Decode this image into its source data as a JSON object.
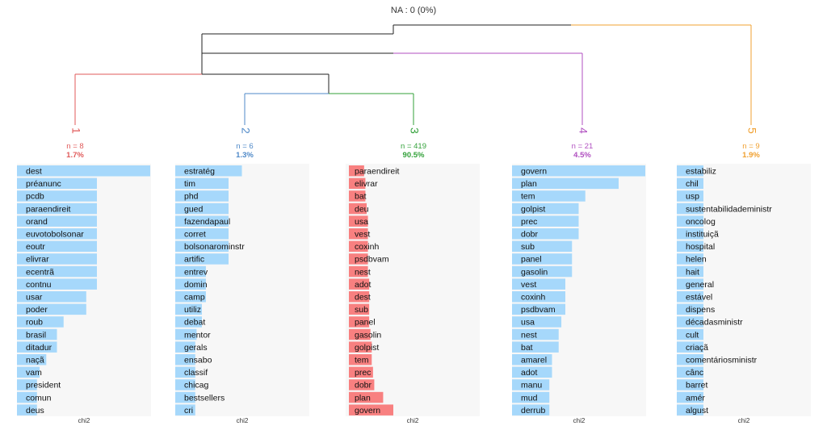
{
  "na_label": "NA : 0 (0%)",
  "axis_label": "chi2",
  "colors": {
    "class1": "#e05a5a",
    "class2": "#4f89c8",
    "class3": "#33a13a",
    "class4": "#b04fc0",
    "class5": "#f0a030",
    "bar_positive": "#a6d8fb",
    "bar_negative": "#f88080",
    "panel_bg": "#f7f7f7",
    "tree_black": "#222222"
  },
  "chart_data": [
    {
      "type": "bar",
      "orientation": "horizontal",
      "class_label": "1",
      "n_label": "n = 8",
      "pct_label": "1.7%",
      "n": 8,
      "percent": 1.7,
      "color": "#e05a5a",
      "xlabel": "chi2",
      "xlim": [
        0,
        100
      ],
      "categories": [
        "dest",
        "préanunc",
        "pcdb",
        "paraendireit",
        "orand",
        "euvotobolsonar",
        "eoutr",
        "elivrar",
        "ecentrã",
        "contnu",
        "usar",
        "poder",
        "roub",
        "brasil",
        "ditadur",
        "naçã",
        "vam",
        "president",
        "comun",
        "deus"
      ],
      "values": [
        100,
        60,
        60,
        60,
        60,
        60,
        60,
        60,
        60,
        60,
        52,
        52,
        35,
        30,
        30,
        22,
        17,
        15,
        15,
        15
      ]
    },
    {
      "type": "bar",
      "orientation": "horizontal",
      "class_label": "2",
      "n_label": "n = 6",
      "pct_label": "1.3%",
      "n": 6,
      "percent": 1.3,
      "color": "#4f89c8",
      "xlabel": "chi2",
      "xlim": [
        0,
        100
      ],
      "categories": [
        "estratég",
        "tim",
        "phd",
        "gued",
        "fazendapaul",
        "corret",
        "bolsonarominstr",
        "artific",
        "entrev",
        "domin",
        "camp",
        "utiliz",
        "debat",
        "mentor",
        "gerals",
        "ensabo",
        "classif",
        "chicag",
        "bestsellers",
        "cri"
      ],
      "values": [
        50,
        40,
        40,
        40,
        40,
        40,
        40,
        40,
        23,
        23,
        23,
        20,
        20,
        16,
        15,
        15,
        15,
        15,
        15,
        15
      ]
    },
    {
      "type": "bar",
      "orientation": "horizontal",
      "class_label": "3",
      "n_label": "n = 419",
      "pct_label": "90.5%",
      "n": 419,
      "percent": 90.5,
      "color": "#33a13a",
      "xlabel": "chi2",
      "xlim": [
        0,
        100
      ],
      "categories": [
        "paraendireit",
        "elivrar",
        "bat",
        "deu",
        "usa",
        "vest",
        "coxinh",
        "psdbvam",
        "nest",
        "adot",
        "dest",
        "sub",
        "panel",
        "gasolin",
        "golpist",
        "tem",
        "prec",
        "dobr",
        "plan",
        "govern"
      ],
      "values": [
        -12,
        -13,
        -13,
        -14,
        -15,
        -15,
        -15,
        -15,
        -15,
        -16,
        -16,
        -16,
        -16,
        -17,
        -18,
        -18,
        -19,
        -20,
        -27,
        -35
      ]
    },
    {
      "type": "bar",
      "orientation": "horizontal",
      "class_label": "4",
      "n_label": "n = 21",
      "pct_label": "4.5%",
      "n": 21,
      "percent": 4.5,
      "color": "#b04fc0",
      "xlabel": "chi2",
      "xlim": [
        0,
        100
      ],
      "categories": [
        "govern",
        "plan",
        "tem",
        "golpist",
        "prec",
        "dobr",
        "sub",
        "panel",
        "gasolin",
        "vest",
        "coxinh",
        "psdbvam",
        "usa",
        "nest",
        "bat",
        "amarel",
        "adot",
        "manu",
        "mud",
        "derrub"
      ],
      "values": [
        100,
        80,
        55,
        50,
        50,
        50,
        45,
        45,
        45,
        40,
        40,
        40,
        37,
        35,
        35,
        30,
        30,
        28,
        28,
        28
      ]
    },
    {
      "type": "bar",
      "orientation": "horizontal",
      "class_label": "5",
      "n_label": "n = 9",
      "pct_label": "1.9%",
      "n": 9,
      "percent": 1.9,
      "color": "#f0a030",
      "xlabel": "chi2",
      "xlim": [
        0,
        100
      ],
      "categories": [
        "estabiliz",
        "chil",
        "usp",
        "sustentabilidadeministr",
        "oncolog",
        "instituiçã",
        "hospital",
        "helen",
        "hait",
        "general",
        "estável",
        "dispens",
        "décadasministr",
        "cult",
        "criaçã",
        "comentáriosministr",
        "cânc",
        "barret",
        "amér",
        "algust"
      ],
      "values": [
        20,
        20,
        20,
        20,
        20,
        20,
        20,
        20,
        20,
        20,
        20,
        20,
        20,
        20,
        20,
        20,
        20,
        20,
        20,
        20
      ]
    }
  ]
}
